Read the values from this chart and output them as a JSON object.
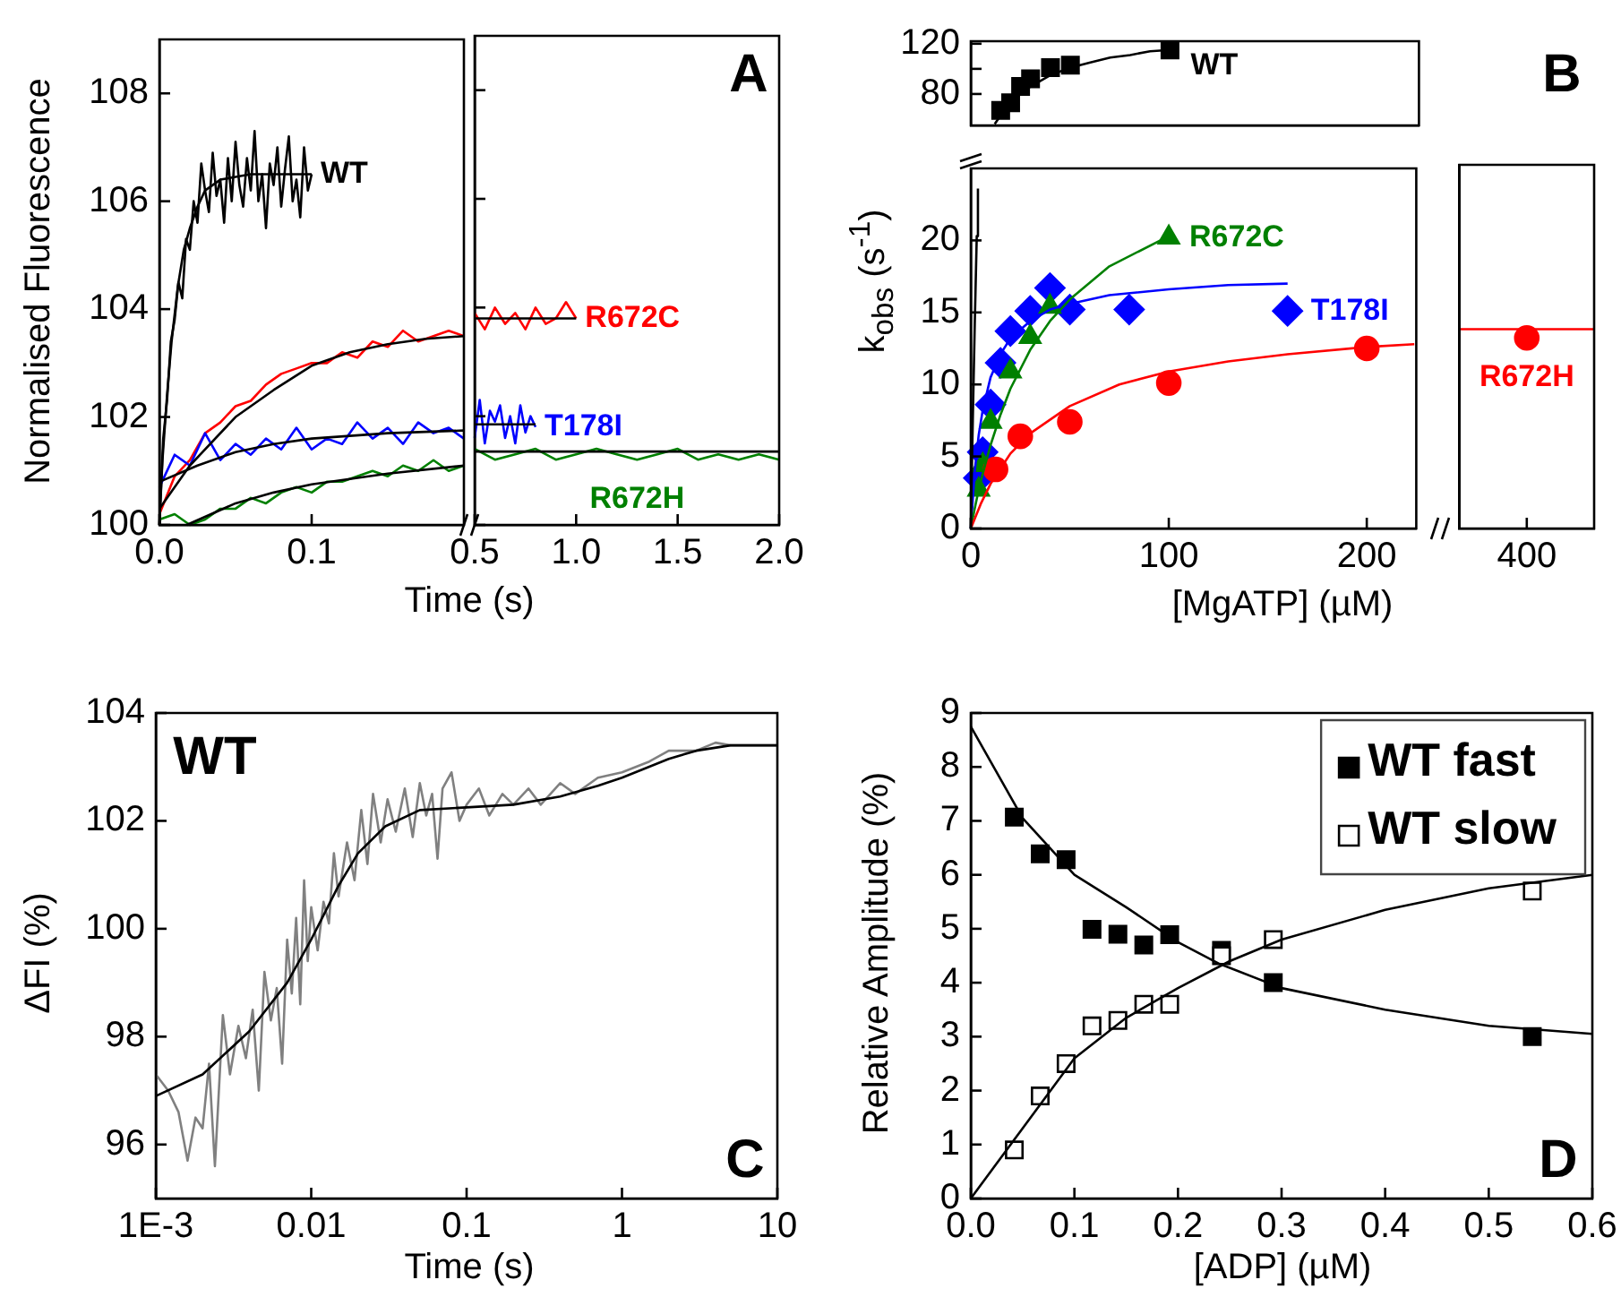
{
  "chart_data": [
    {
      "type": "line",
      "xlabel": "Time (s)",
      "ylabel": "Normalised Fluorescence",
      "xlim": [
        0,
        0.2
      ],
      "xticks": [
        {
          "value": 0,
          "label": "0.0"
        },
        0.1
      ],
      "ylim": [
        100,
        109
      ],
      "yticks": [
        100,
        102,
        104,
        106,
        108
      ],
      "series": [
        {
          "name": "WT",
          "color": "#000000",
          "marker": "none",
          "x": [
            0,
            0.0025,
            0.005,
            0.0075,
            0.01,
            0.0125,
            0.015,
            0.0175,
            0.02,
            0.0225,
            0.025,
            0.0275,
            0.03,
            0.0325,
            0.035,
            0.0375,
            0.04,
            0.0425,
            0.045,
            0.0475,
            0.05,
            0.0525,
            0.055,
            0.0575,
            0.06,
            0.0625,
            0.065,
            0.0675,
            0.07,
            0.0725,
            0.075,
            0.0775,
            0.08,
            0.0825,
            0.085,
            0.0875,
            0.09,
            0.0925,
            0.095,
            0.0975,
            0.1
          ],
          "values": [
            100.0,
            101.6,
            102.3,
            103.4,
            103.8,
            104.5,
            104.2,
            105.3,
            105.1,
            106.0,
            105.6,
            106.7,
            106.2,
            105.8,
            106.9,
            106.1,
            106.4,
            105.6,
            106.8,
            106.0,
            107.1,
            106.3,
            105.9,
            106.8,
            106.2,
            107.3,
            106.0,
            106.5,
            105.5,
            106.7,
            106.3,
            107.0,
            105.9,
            106.6,
            107.2,
            106.0,
            106.4,
            105.7,
            107.0,
            106.2,
            106.5
          ]
        },
        {
          "color": "#ff0000",
          "marker": "none",
          "x": [
            0,
            0.01,
            0.02,
            0.03,
            0.04,
            0.05,
            0.06,
            0.07,
            0.08,
            0.09,
            0.1,
            0.11,
            0.12,
            0.13,
            0.14,
            0.15,
            0.16,
            0.17,
            0.18,
            0.19,
            0.2
          ],
          "values": [
            100.2,
            100.9,
            101.2,
            101.7,
            101.9,
            102.2,
            102.3,
            102.6,
            102.8,
            102.9,
            103.0,
            103.0,
            103.2,
            103.1,
            103.4,
            103.3,
            103.6,
            103.4,
            103.5,
            103.6,
            103.5
          ]
        },
        {
          "color": "#0000ff",
          "marker": "none",
          "x": [
            0,
            0.01,
            0.02,
            0.03,
            0.04,
            0.05,
            0.06,
            0.07,
            0.08,
            0.09,
            0.1,
            0.11,
            0.12,
            0.13,
            0.14,
            0.15,
            0.16,
            0.17,
            0.18,
            0.19,
            0.2
          ],
          "values": [
            100.7,
            101.3,
            101.1,
            101.7,
            101.2,
            101.5,
            101.3,
            101.6,
            101.4,
            101.8,
            101.4,
            101.6,
            101.5,
            101.9,
            101.6,
            101.8,
            101.5,
            101.9,
            101.7,
            101.8,
            101.6
          ]
        },
        {
          "color": "#008000",
          "marker": "none",
          "x": [
            0,
            0.01,
            0.02,
            0.03,
            0.04,
            0.05,
            0.06,
            0.07,
            0.08,
            0.09,
            0.1,
            0.11,
            0.12,
            0.13,
            0.14,
            0.15,
            0.16,
            0.17,
            0.18,
            0.19,
            0.2
          ],
          "values": [
            100.1,
            100.2,
            100.0,
            100.1,
            100.3,
            100.3,
            100.5,
            100.4,
            100.6,
            100.7,
            100.6,
            100.8,
            100.8,
            100.9,
            101.0,
            100.9,
            101.1,
            101.0,
            101.2,
            101.0,
            101.1
          ]
        },
        {
          "color": "#000000",
          "marker": "none",
          "x": [
            0,
            0.002,
            0.005,
            0.008,
            0.012,
            0.016,
            0.02,
            0.025,
            0.03,
            0.04,
            0.05,
            0.06,
            0.08,
            0.1
          ],
          "values": [
            100,
            101.2,
            102.4,
            103.4,
            104.4,
            105.1,
            105.5,
            105.9,
            106.2,
            106.4,
            106.45,
            106.5,
            106.5,
            106.5
          ]
        },
        {
          "color": "#000000",
          "marker": "none",
          "x": [
            0,
            0.02,
            0.05,
            0.075,
            0.1,
            0.125,
            0.15,
            0.175,
            0.2
          ],
          "values": [
            100.3,
            101.1,
            102.0,
            102.5,
            102.95,
            103.2,
            103.35,
            103.45,
            103.5
          ]
        },
        {
          "color": "#000000",
          "marker": "none",
          "x": [
            0,
            0.025,
            0.05,
            0.075,
            0.1,
            0.15,
            0.2
          ],
          "values": [
            100.8,
            101.1,
            101.35,
            101.5,
            101.6,
            101.7,
            101.75
          ]
        },
        {
          "color": "#000000",
          "marker": "none",
          "x": [
            0.018,
            0.05,
            0.075,
            0.1,
            0.15,
            0.2
          ],
          "values": [
            100.0,
            100.4,
            100.6,
            100.75,
            100.95,
            101.1
          ]
        }
      ]
    },
    {
      "type": "line",
      "annotations": [
        "A"
      ],
      "tick_labels": "x",
      "xlim": [
        0.5,
        2
      ],
      "xticks": [
        0.5,
        {
          "value": 1,
          "label": "1.0"
        },
        1.5,
        {
          "value": 2,
          "label": "2.0"
        }
      ],
      "ylim": [
        100,
        109
      ],
      "yticks": [
        100,
        102,
        104,
        106,
        108
      ],
      "series": [
        {
          "name": "R672C",
          "color": "#ff0000",
          "marker": "none",
          "x": [
            0.5,
            0.55,
            0.6,
            0.65,
            0.7,
            0.75,
            0.8,
            0.85,
            0.9,
            0.95,
            1.0
          ],
          "values": [
            103.9,
            103.6,
            104.0,
            103.7,
            103.9,
            103.6,
            104.0,
            103.7,
            103.8,
            104.1,
            103.8
          ]
        },
        {
          "name": "T178I",
          "color": "#0000ff",
          "marker": "none",
          "x": [
            0.5,
            0.525,
            0.55,
            0.575,
            0.6,
            0.625,
            0.65,
            0.675,
            0.7,
            0.725,
            0.75,
            0.775,
            0.8
          ],
          "values": [
            101.6,
            102.3,
            101.5,
            102.1,
            101.9,
            102.2,
            101.6,
            102.0,
            101.5,
            102.2,
            101.7,
            102.0,
            101.8
          ]
        },
        {
          "name": "R672H",
          "color": "#008000",
          "marker": "none",
          "x": [
            0.5,
            0.6,
            0.7,
            0.8,
            0.9,
            1.0,
            1.1,
            1.2,
            1.3,
            1.4,
            1.5,
            1.6,
            1.7,
            1.8,
            1.9,
            2.0
          ],
          "values": [
            101.4,
            101.2,
            101.3,
            101.4,
            101.2,
            101.3,
            101.4,
            101.3,
            101.2,
            101.3,
            101.4,
            101.2,
            101.3,
            101.2,
            101.3,
            101.2
          ]
        },
        {
          "color": "#000000",
          "marker": "none",
          "x": [
            0.5,
            1.0
          ],
          "values": [
            103.8,
            103.8
          ]
        },
        {
          "color": "#000000",
          "marker": "none",
          "x": [
            0.5,
            0.8
          ],
          "values": [
            101.85,
            101.85
          ]
        },
        {
          "color": "#000000",
          "marker": "none",
          "x": [
            0.5,
            2.0
          ],
          "values": [
            101.35,
            101.35
          ]
        }
      ]
    },
    {
      "type": "scatter",
      "annotations": [
        "B"
      ],
      "tick_labels": "y",
      "xlim": [
        0,
        225
      ],
      "ylim": [
        55,
        122
      ],
      "yticks": [
        80,
        {
          "value": 100,
          "label": null
        },
        120
      ],
      "series": [
        {
          "name": "WT",
          "color": "#000000",
          "marker": "square",
          "x": [
            15,
            20,
            25,
            30,
            40,
            50,
            100
          ],
          "values": [
            67,
            73,
            86,
            92,
            101,
            103,
            115
          ]
        },
        {
          "type": "line",
          "color": "#000000",
          "marker": "none",
          "x": [
            12,
            15,
            20,
            25,
            30,
            40,
            50,
            60,
            70,
            80,
            90,
            100
          ],
          "values": [
            56,
            63,
            73,
            80,
            86,
            95,
            101,
            105,
            109,
            111,
            114,
            115
          ]
        }
      ]
    },
    {
      "type": "scatter",
      "xlabel": "[MgATP] (µM)",
      "ylabel": "k$_{obs}$ (s$^{-1}$)",
      "xlim": [
        0,
        225
      ],
      "xticks": [
        0,
        100,
        200
      ],
      "ylim": [
        0,
        25
      ],
      "yticks": [
        0,
        5,
        10,
        15,
        20
      ],
      "series": [
        {
          "name": "T178I",
          "color": "#0000ff",
          "marker": "diamond",
          "x": [
            4,
            6,
            10,
            15,
            20,
            30,
            40,
            50,
            80,
            160
          ],
          "values": [
            3.5,
            5.3,
            8.6,
            11.5,
            13.7,
            15.1,
            16.7,
            15.2,
            15.2,
            15.1
          ]
        },
        {
          "name": "R672C",
          "color": "#008000",
          "marker": "triangle",
          "x": [
            4,
            6,
            10,
            20,
            30,
            40,
            100
          ],
          "values": [
            2.7,
            4.4,
            7.4,
            10.9,
            13.3,
            15.4,
            20.2
          ]
        },
        {
          "color": "#ff0000",
          "marker": "circle",
          "x": [
            12.5,
            25,
            50,
            100,
            200
          ],
          "values": [
            4.1,
            6.4,
            7.4,
            10.1,
            12.5
          ]
        },
        {
          "type": "line",
          "color": "#0000ff",
          "marker": "none",
          "x": [
            0,
            2,
            4,
            6,
            10,
            15,
            20,
            30,
            40,
            50,
            70,
            100,
            130,
            160
          ],
          "values": [
            0,
            4.0,
            6.5,
            8.2,
            10.5,
            12.1,
            13.2,
            14.4,
            15.2,
            15.6,
            16.2,
            16.6,
            16.9,
            17.0
          ]
        },
        {
          "type": "line",
          "color": "#008000",
          "marker": "none",
          "x": [
            0,
            2,
            4,
            6,
            10,
            15,
            20,
            30,
            40,
            50,
            70,
            100
          ],
          "values": [
            0,
            1.4,
            2.7,
            3.8,
            5.8,
            7.9,
            9.7,
            12.4,
            14.4,
            15.9,
            18.2,
            20.3
          ]
        },
        {
          "type": "line",
          "color": "#ff0000",
          "marker": "none",
          "x": [
            0,
            5,
            10,
            20,
            30,
            50,
            75,
            100,
            130,
            160,
            200,
            224
          ],
          "values": [
            0,
            1.7,
            3.1,
            5.2,
            6.6,
            8.5,
            10.0,
            10.9,
            11.6,
            12.1,
            12.6,
            12.8
          ]
        },
        {
          "type": "line",
          "color": "#000000",
          "marker": "none",
          "x": [
            0,
            1,
            2,
            3,
            3.6
          ],
          "values": [
            0,
            7.5,
            14.2,
            20.3,
            23.6
          ]
        }
      ]
    },
    {
      "type": "scatter",
      "tick_labels": "x",
      "categories": [
        "400"
      ],
      "ylim": [
        0,
        25
      ],
      "series": [
        {
          "name": "R672H",
          "color": "#ff0000",
          "marker": "circle",
          "values": [
            13.1
          ]
        }
      ],
      "ref_lines": [
        {
          "axis": "y",
          "value": 13.7,
          "color": "#ff0000"
        }
      ]
    },
    {
      "type": "line",
      "annotations": [
        "WT",
        "C"
      ],
      "log": "x",
      "xlabel": "Time (s)",
      "ylabel": "ΔFI (%)",
      "xlim": [
        0.001,
        10
      ],
      "xticks": [
        {
          "value": 0.001,
          "label": "1E-3"
        },
        0.01,
        0.1,
        1,
        10
      ],
      "ylim": [
        95,
        104
      ],
      "yticks": [
        96,
        98,
        100,
        102,
        104
      ],
      "series": [
        {
          "color": "#808080",
          "marker": "none",
          "x": [
            0.001,
            0.0012,
            0.0014,
            0.0016,
            0.0018,
            0.002,
            0.0022,
            0.0024,
            0.0027,
            0.003,
            0.0034,
            0.0038,
            0.0042,
            0.0046,
            0.005,
            0.0055,
            0.006,
            0.0065,
            0.007,
            0.0075,
            0.008,
            0.0085,
            0.009,
            0.0095,
            0.01,
            0.011,
            0.012,
            0.013,
            0.014,
            0.015,
            0.017,
            0.019,
            0.021,
            0.023,
            0.025,
            0.028,
            0.031,
            0.035,
            0.04,
            0.045,
            0.05,
            0.055,
            0.06,
            0.065,
            0.07,
            0.08,
            0.09,
            0.1,
            0.12,
            0.14,
            0.17,
            0.2,
            0.25,
            0.3,
            0.4,
            0.5,
            0.7,
            1,
            1.5,
            2,
            3,
            4,
            5,
            7,
            10
          ],
          "values": [
            97.3,
            97.0,
            96.6,
            95.7,
            96.5,
            96.3,
            97.5,
            95.6,
            98.4,
            97.3,
            98.2,
            97.6,
            98.5,
            97.0,
            99.2,
            98.3,
            98.9,
            97.5,
            99.8,
            98.8,
            100.2,
            98.6,
            100.9,
            99.4,
            100.4,
            99.6,
            100.5,
            100.1,
            101.4,
            100.6,
            101.6,
            100.9,
            102.2,
            101.2,
            102.5,
            101.6,
            102.4,
            101.8,
            102.6,
            101.7,
            102.7,
            102.1,
            102.5,
            101.3,
            102.6,
            102.9,
            102.0,
            102.3,
            102.6,
            102.1,
            102.5,
            102.3,
            102.6,
            102.3,
            102.7,
            102.5,
            102.8,
            102.9,
            103.1,
            103.3,
            103.3,
            103.45,
            103.4,
            103.4,
            103.4
          ]
        },
        {
          "color": "#000000",
          "marker": "none",
          "x": [
            0.001,
            0.002,
            0.004,
            0.007,
            0.01,
            0.015,
            0.02,
            0.03,
            0.05,
            0.1,
            0.2,
            0.4,
            0.7,
            1,
            2,
            3,
            5,
            10
          ],
          "values": [
            96.9,
            97.3,
            98.1,
            99.0,
            99.8,
            100.8,
            101.4,
            101.9,
            102.2,
            102.25,
            102.3,
            102.45,
            102.65,
            102.8,
            103.15,
            103.3,
            103.4,
            103.4
          ]
        }
      ]
    },
    {
      "type": "scatter",
      "annotations": [
        "D"
      ],
      "legend": "top right",
      "xlabel": "[ADP] (µM)",
      "ylabel": "Relative Amplitude (%)",
      "xlim": [
        0,
        0.6
      ],
      "xticks": [
        {
          "value": 0,
          "label": "0.0"
        },
        0.1,
        0.2,
        0.3,
        0.4,
        0.5,
        0.6
      ],
      "ylim": [
        0,
        9
      ],
      "yticks": [
        0,
        1,
        2,
        3,
        4,
        5,
        6,
        7,
        8,
        9
      ],
      "series": [
        {
          "name": "WT fast",
          "color": "#000000",
          "marker": "square",
          "x": [
            0.042,
            0.067,
            0.092,
            0.117,
            0.142,
            0.167,
            0.192,
            0.242,
            0.292,
            0.542
          ],
          "values": [
            7.07,
            6.39,
            6.28,
            4.99,
            4.9,
            4.7,
            4.89,
            4.6,
            4.0,
            3.0
          ]
        },
        {
          "name": "WT slow",
          "color": "#000000",
          "marker": "square",
          "x": [
            0.042,
            0.067,
            0.092,
            0.117,
            0.142,
            0.167,
            0.192,
            0.242,
            0.292,
            0.542
          ],
          "values": [
            0.9,
            1.9,
            2.5,
            3.2,
            3.3,
            3.6,
            3.6,
            4.5,
            4.8,
            5.7
          ]
        },
        {
          "type": "line",
          "color": "#000000",
          "marker": "none",
          "x": [
            0,
            0.05,
            0.1,
            0.15,
            0.2,
            0.24,
            0.3,
            0.4,
            0.5,
            0.6
          ],
          "values": [
            8.75,
            7.05,
            6.0,
            5.4,
            4.75,
            4.35,
            3.9,
            3.5,
            3.2,
            3.05
          ]
        },
        {
          "type": "line",
          "color": "#000000",
          "marker": "none",
          "x": [
            0,
            0.05,
            0.1,
            0.15,
            0.2,
            0.25,
            0.3,
            0.4,
            0.5,
            0.6
          ],
          "values": [
            0,
            1.3,
            2.6,
            3.35,
            3.9,
            4.4,
            4.8,
            5.35,
            5.75,
            6.0
          ]
        }
      ]
    }
  ]
}
